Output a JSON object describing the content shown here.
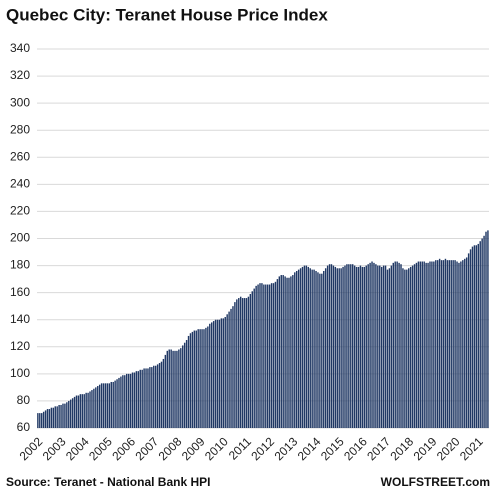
{
  "chart_data": {
    "type": "bar",
    "title": "Quebec City: Teranet House Price Index",
    "source": "Source: Teranet - National Bank HPI",
    "brand": "WOLFSTREET.com",
    "color": "#203864",
    "grid": true,
    "ylim": [
      60,
      340
    ],
    "yticks": [
      60,
      80,
      100,
      120,
      140,
      160,
      180,
      200,
      220,
      240,
      260,
      280,
      300,
      320,
      340
    ],
    "categories": [
      "2002",
      null,
      null,
      null,
      null,
      null,
      null,
      null,
      null,
      null,
      null,
      null,
      "2003",
      null,
      null,
      null,
      null,
      null,
      null,
      null,
      null,
      null,
      null,
      null,
      "2004",
      null,
      null,
      null,
      null,
      null,
      null,
      null,
      null,
      null,
      null,
      null,
      "2005",
      null,
      null,
      null,
      null,
      null,
      null,
      null,
      null,
      null,
      null,
      null,
      "2006",
      null,
      null,
      null,
      null,
      null,
      null,
      null,
      null,
      null,
      null,
      null,
      "2007",
      null,
      null,
      null,
      null,
      null,
      null,
      null,
      null,
      null,
      null,
      null,
      "2008",
      null,
      null,
      null,
      null,
      null,
      null,
      null,
      null,
      null,
      null,
      null,
      "2009",
      null,
      null,
      null,
      null,
      null,
      null,
      null,
      null,
      null,
      null,
      null,
      "2010",
      null,
      null,
      null,
      null,
      null,
      null,
      null,
      null,
      null,
      null,
      null,
      "2011",
      null,
      null,
      null,
      null,
      null,
      null,
      null,
      null,
      null,
      null,
      null,
      "2012",
      null,
      null,
      null,
      null,
      null,
      null,
      null,
      null,
      null,
      null,
      null,
      "2013",
      null,
      null,
      null,
      null,
      null,
      null,
      null,
      null,
      null,
      null,
      null,
      "2014",
      null,
      null,
      null,
      null,
      null,
      null,
      null,
      null,
      null,
      null,
      null,
      "2015",
      null,
      null,
      null,
      null,
      null,
      null,
      null,
      null,
      null,
      null,
      null,
      "2016",
      null,
      null,
      null,
      null,
      null,
      null,
      null,
      null,
      null,
      null,
      null,
      "2017",
      null,
      null,
      null,
      null,
      null,
      null,
      null,
      null,
      null,
      null,
      null,
      "2018",
      null,
      null,
      null,
      null,
      null,
      null,
      null,
      null,
      null,
      null,
      null,
      "2019",
      null,
      null,
      null,
      null,
      null,
      null,
      null,
      null,
      null,
      null,
      null,
      "2020",
      null,
      null,
      null,
      null,
      null,
      null,
      null,
      null,
      null,
      null,
      null,
      "2021",
      null,
      null,
      null,
      null,
      null
    ],
    "values": [
      71,
      71,
      71,
      72,
      73,
      74,
      74,
      75,
      75,
      76,
      76,
      77,
      77,
      78,
      78,
      79,
      80,
      81,
      82,
      83,
      84,
      84,
      85,
      85,
      85,
      86,
      86,
      87,
      88,
      89,
      90,
      91,
      92,
      93,
      93,
      93,
      93,
      93,
      94,
      94,
      95,
      96,
      97,
      98,
      99,
      99,
      100,
      100,
      100,
      101,
      101,
      102,
      102,
      103,
      103,
      104,
      104,
      104,
      105,
      105,
      106,
      106,
      107,
      108,
      109,
      111,
      114,
      117,
      118,
      118,
      117,
      117,
      117,
      118,
      119,
      121,
      123,
      125,
      128,
      130,
      131,
      132,
      132,
      133,
      133,
      133,
      133,
      134,
      135,
      137,
      138,
      139,
      140,
      140,
      140,
      141,
      141,
      142,
      144,
      146,
      148,
      150,
      153,
      155,
      156,
      157,
      156,
      156,
      156,
      157,
      159,
      161,
      163,
      165,
      166,
      167,
      167,
      166,
      166,
      166,
      166,
      167,
      167,
      168,
      170,
      172,
      173,
      173,
      172,
      171,
      171,
      172,
      173,
      175,
      176,
      177,
      178,
      179,
      180,
      180,
      179,
      178,
      177,
      177,
      176,
      175,
      174,
      174,
      176,
      178,
      180,
      181,
      181,
      180,
      179,
      178,
      178,
      178,
      179,
      180,
      181,
      181,
      181,
      181,
      180,
      179,
      179,
      180,
      179,
      179,
      180,
      181,
      182,
      183,
      182,
      181,
      180,
      180,
      179,
      180,
      180,
      177,
      178,
      180,
      182,
      183,
      183,
      182,
      181,
      178,
      177,
      177,
      178,
      179,
      180,
      181,
      182,
      183,
      183,
      183,
      183,
      182,
      182,
      183,
      183,
      183,
      184,
      184,
      185,
      184,
      184,
      185,
      184,
      184,
      184,
      184,
      184,
      183,
      182,
      183,
      184,
      185,
      186,
      189,
      192,
      194,
      195,
      195,
      196,
      198,
      200,
      202,
      205,
      206
    ]
  }
}
